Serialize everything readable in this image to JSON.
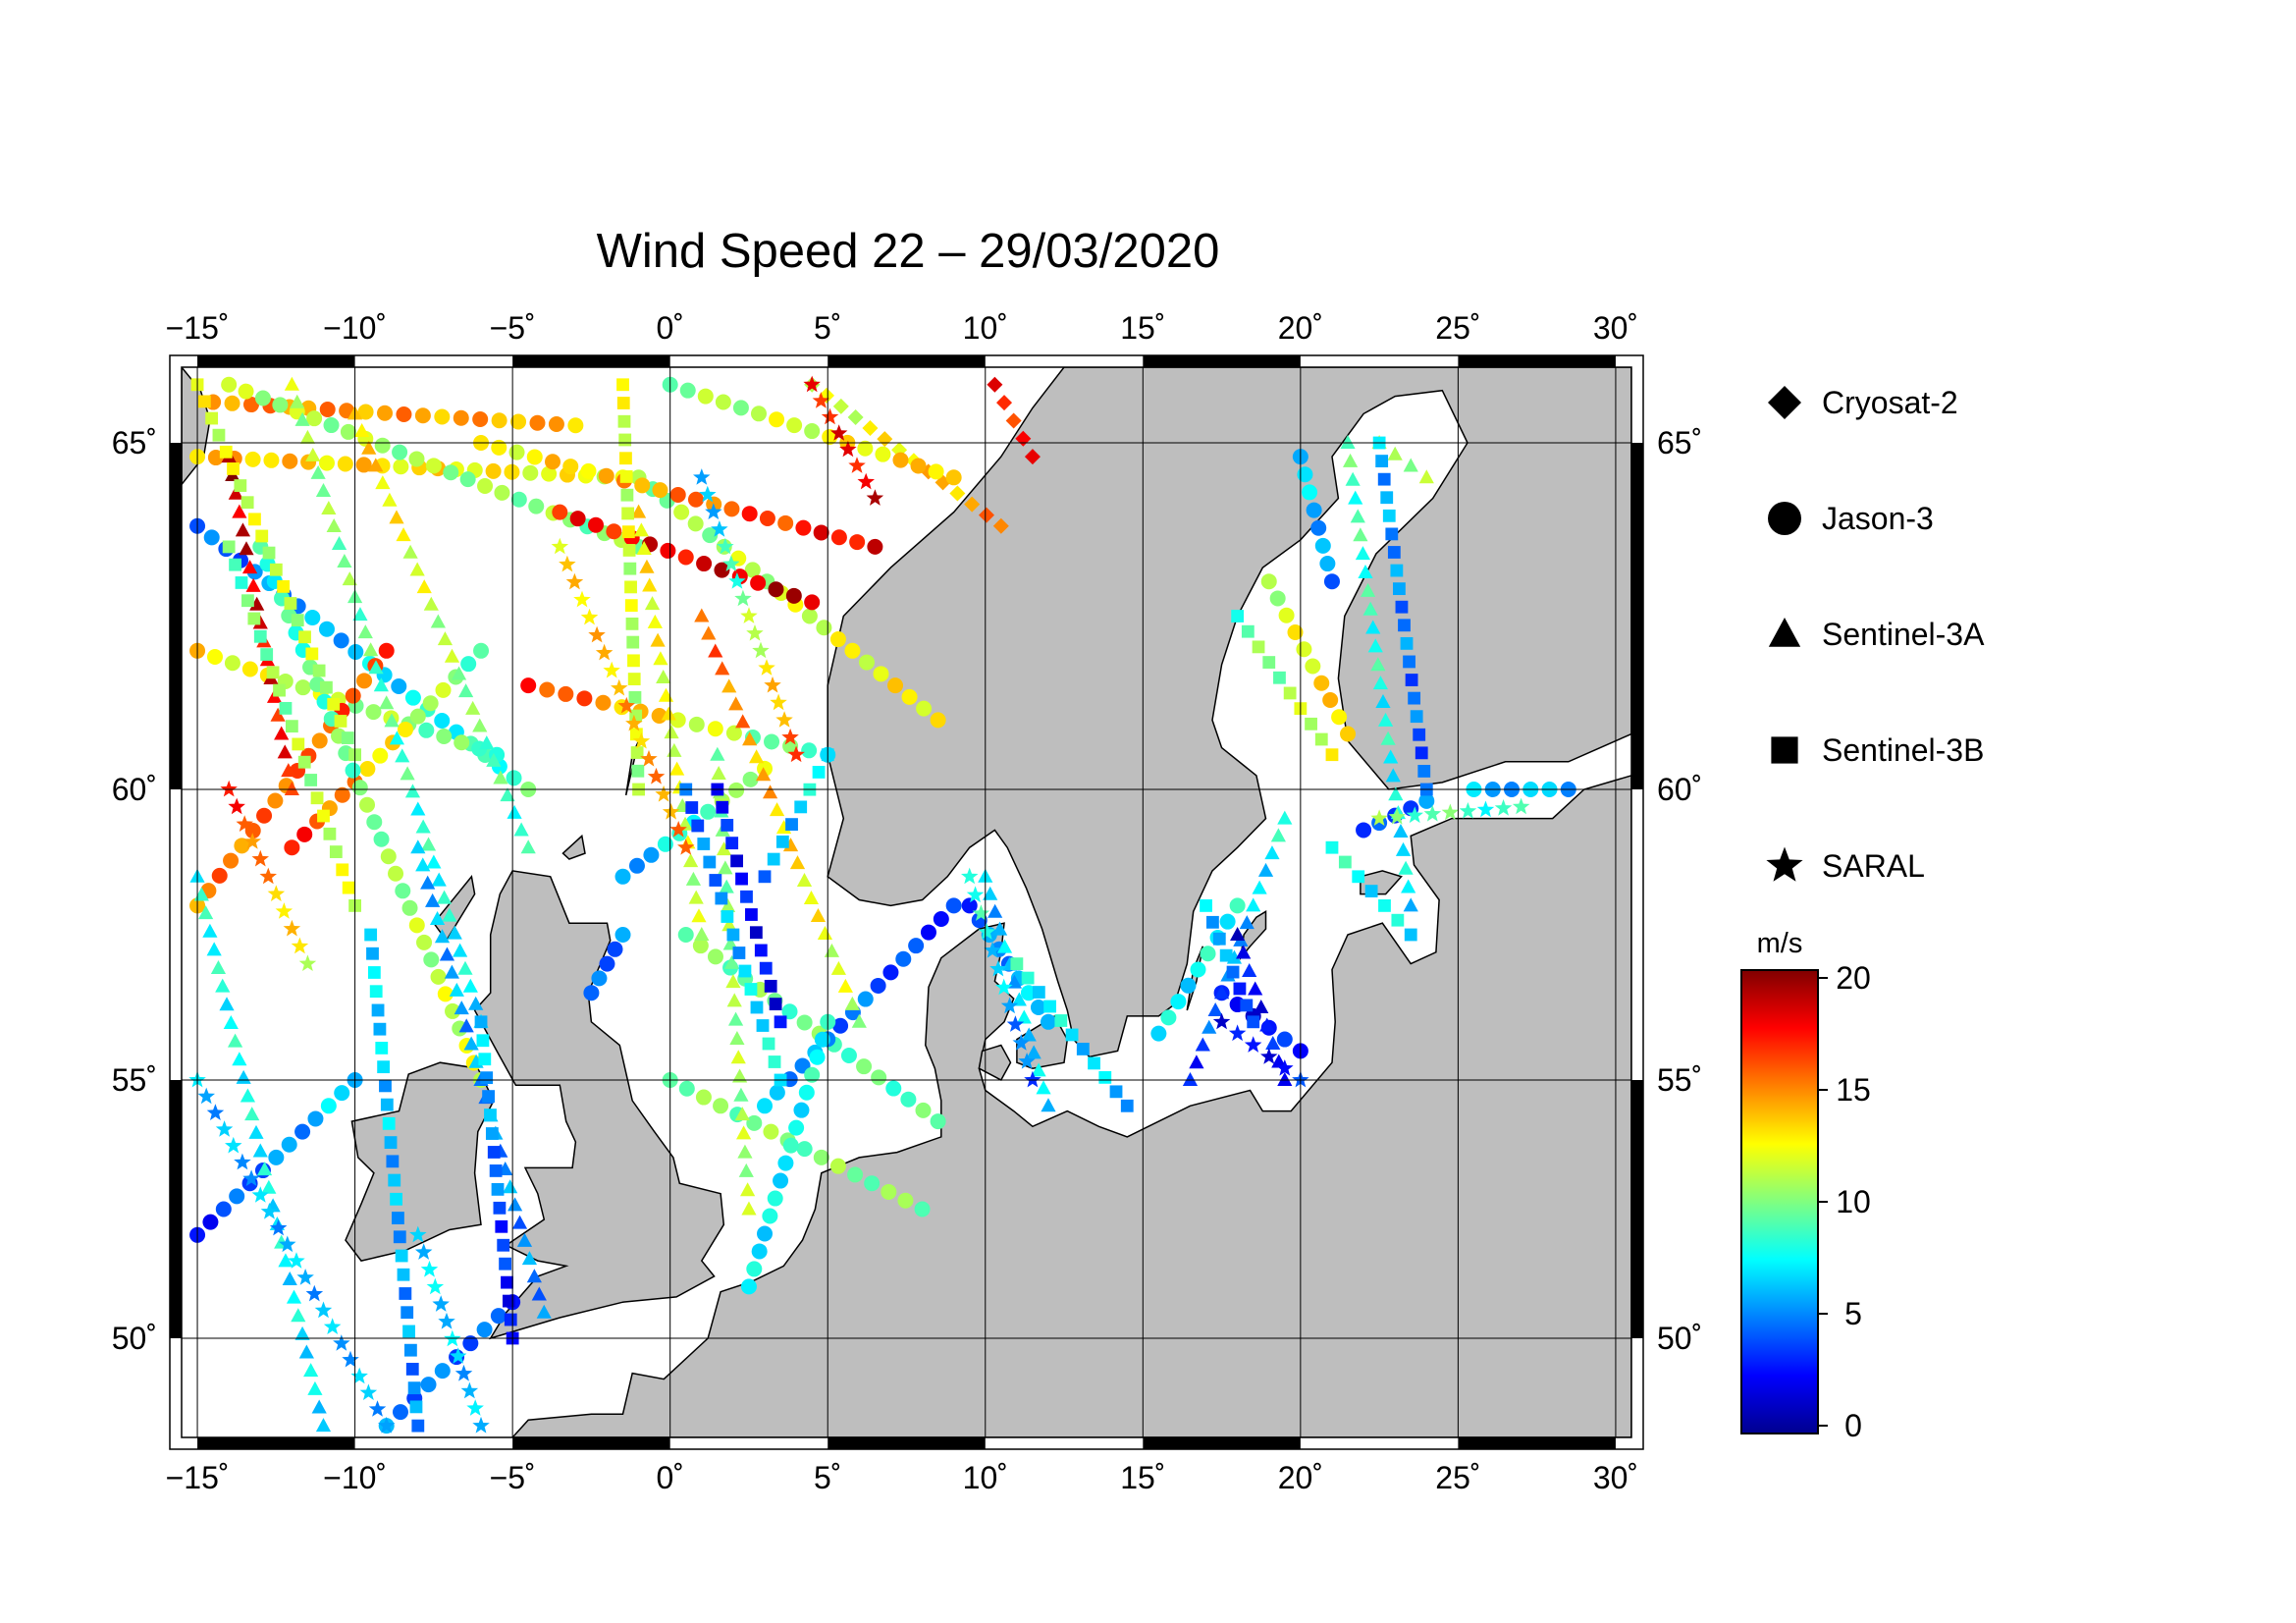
{
  "title": "Wind Speed 22 – 29/03/2020",
  "map": {
    "lon_range": [
      -15.5,
      30.5
    ],
    "lat_range": [
      48.3,
      66.3
    ],
    "lon_ticks": [
      -15,
      -10,
      -5,
      0,
      5,
      10,
      15,
      20,
      25,
      30
    ],
    "lon_labels": [
      "−15˚",
      "−10˚",
      "−5˚",
      "0˚",
      "5˚",
      "10˚",
      "15˚",
      "20˚",
      "25˚",
      "30˚"
    ],
    "lat_ticks": [
      50,
      55,
      60,
      65
    ],
    "lat_labels": [
      "50˚",
      "55˚",
      "60˚",
      "65˚"
    ],
    "ocean_color": "#ffffff",
    "land_color": "#bebebe",
    "coast_color": "#000000"
  },
  "legend": {
    "items": [
      {
        "label": "Cryosat-2",
        "symbol": "diamond"
      },
      {
        "label": "Jason-3",
        "symbol": "circle"
      },
      {
        "label": "Sentinel-3A",
        "symbol": "triangle"
      },
      {
        "label": "Sentinel-3B",
        "symbol": "square"
      },
      {
        "label": "SARAL",
        "symbol": "star"
      }
    ]
  },
  "colorbar": {
    "unit": "m/s",
    "min": 0,
    "max": 20,
    "tick_values": [
      0,
      5,
      10,
      15,
      20
    ],
    "tick_labels": [
      "0",
      "5",
      "10",
      "15",
      "20"
    ],
    "colors": [
      "#00008f",
      "#0000ff",
      "#0080ff",
      "#00ffff",
      "#80ff80",
      "#ffff00",
      "#ff8000",
      "#ff0000",
      "#800000"
    ]
  },
  "chart_data": {
    "type": "scatter",
    "title": "Wind Speed 22 – 29/03/2020",
    "xlabel": "",
    "ylabel": "",
    "color_variable_unit": "m/s",
    "color_range": [
      0,
      20
    ],
    "xlim": [
      -15.5,
      30.5
    ],
    "ylim": [
      48.3,
      66.3
    ],
    "series": [
      {
        "name": "Cryosat-2",
        "symbol": "diamond",
        "tracks": [
          {
            "p0": [
              4.5,
              66.0
            ],
            "p1": [
              10.5,
              63.8
            ],
            "w0": 11,
            "w1": 15
          },
          {
            "p0": [
              10.3,
              66.0
            ],
            "p1": [
              11.5,
              64.8
            ],
            "w0": 17,
            "w1": 17
          }
        ]
      },
      {
        "name": "Jason-3",
        "symbol": "circle",
        "tracks": [
          {
            "p0": [
              -15,
              63.8
            ],
            "p1": [
              -4.5,
              60.0
            ],
            "w0": 4,
            "w1": 9
          },
          {
            "p0": [
              -15,
              62.0
            ],
            "p1": [
              -5.5,
              60.5
            ],
            "w0": 13,
            "w1": 9
          },
          {
            "p0": [
              -14.5,
              65.7
            ],
            "p1": [
              -3.0,
              65.3
            ],
            "w0": 15,
            "w1": 14
          },
          {
            "p0": [
              -15,
              64.8
            ],
            "p1": [
              -1.5,
              64.5
            ],
            "w0": 14,
            "w1": 12
          },
          {
            "p0": [
              -14,
              66.0
            ],
            "p1": [
              -1.0,
              63.5
            ],
            "w0": 11,
            "w1": 10
          },
          {
            "p0": [
              -1.0,
              64.5
            ],
            "p1": [
              8.5,
              61.0
            ],
            "w0": 10,
            "w1": 13
          },
          {
            "p0": [
              0.0,
              66.0
            ],
            "p1": [
              9.0,
              64.5
            ],
            "w0": 10,
            "w1": 14
          },
          {
            "p0": [
              -3.5,
              64.0
            ],
            "p1": [
              4.5,
              62.7
            ],
            "w0": 17,
            "w1": 19
          },
          {
            "p0": [
              -6.0,
              65.0
            ],
            "p1": [
              6.5,
              63.5
            ],
            "w0": 12,
            "w1": 18
          },
          {
            "p0": [
              -4.5,
              61.5
            ],
            "p1": [
              5.0,
              60.5
            ],
            "w0": 17,
            "w1": 8
          },
          {
            "p0": [
              -15,
              58.0
            ],
            "p1": [
              -9.0,
              62.0
            ],
            "w0": 15,
            "w1": 16
          },
          {
            "p0": [
              -12.0,
              59.0
            ],
            "p1": [
              -6.0,
              62.0
            ],
            "w0": 17,
            "w1": 9
          },
          {
            "p0": [
              -13.0,
              63.5
            ],
            "p1": [
              -6.0,
              55.0
            ],
            "w0": 8,
            "w1": 12
          },
          {
            "p0": [
              -15,
              52.0
            ],
            "p1": [
              -10.0,
              55.0
            ],
            "w0": 3,
            "w1": 7
          },
          {
            "p0": [
              -5.0,
              50.7
            ],
            "p1": [
              -9.0,
              48.5
            ],
            "w0": 4,
            "w1": 5
          },
          {
            "p0": [
              -2.5,
              56.5
            ],
            "p1": [
              -1.5,
              57.5
            ],
            "w0": 4,
            "w1": 5
          },
          {
            "p0": [
              -1.5,
              58.5
            ],
            "p1": [
              3.0,
              60.3
            ],
            "w0": 5,
            "w1": 12
          },
          {
            "p0": [
              0.0,
              55.0
            ],
            "p1": [
              8.0,
              52.5
            ],
            "w0": 10,
            "w1": 10
          },
          {
            "p0": [
              0.5,
              57.5
            ],
            "p1": [
              8.5,
              54.2
            ],
            "w0": 10,
            "w1": 9
          },
          {
            "p0": [
              3.0,
              54.5
            ],
            "p1": [
              9.0,
              58.0
            ],
            "w0": 6,
            "w1": 3
          },
          {
            "p0": [
              5.0,
              56.0
            ],
            "p1": [
              2.5,
              51.0
            ],
            "w0": 8,
            "w1": 7
          },
          {
            "p0": [
              9.5,
              58.0
            ],
            "p1": [
              12.0,
              56.0
            ],
            "w0": 4,
            "w1": 7
          },
          {
            "p0": [
              15.5,
              55.8
            ],
            "p1": [
              18.0,
              58.0
            ],
            "w0": 7,
            "w1": 8
          },
          {
            "p0": [
              17.5,
              56.5
            ],
            "p1": [
              20.0,
              55.5
            ],
            "w0": 2,
            "w1": 3
          },
          {
            "p0": [
              19.0,
              63.0
            ],
            "p1": [
              21.5,
              60.8
            ],
            "w0": 11,
            "w1": 14
          },
          {
            "p0": [
              20.0,
              64.8
            ],
            "p1": [
              21.0,
              63.0
            ],
            "w0": 7,
            "w1": 5
          },
          {
            "p0": [
              22.0,
              59.3
            ],
            "p1": [
              24.0,
              59.8
            ],
            "w0": 3,
            "w1": 5
          },
          {
            "p0": [
              25.5,
              60.0
            ],
            "p1": [
              28.5,
              60.0
            ],
            "w0": 6,
            "w1": 6
          }
        ]
      },
      {
        "name": "Sentinel-3A",
        "symbol": "triangle",
        "tracks": [
          {
            "p0": [
              -14.0,
              64.8
            ],
            "p1": [
              -12.0,
              60.0
            ],
            "w0": 19,
            "w1": 17
          },
          {
            "p0": [
              -12.0,
              66.0
            ],
            "p1": [
              -6.0,
              56.0
            ],
            "w0": 11,
            "w1": 7
          },
          {
            "p0": [
              -10.0,
              65.5
            ],
            "p1": [
              -4.5,
              59.0
            ],
            "w0": 14,
            "w1": 8
          },
          {
            "p0": [
              -15,
              58.5
            ],
            "p1": [
              -11.0,
              48.5
            ],
            "w0": 8,
            "w1": 7
          },
          {
            "p0": [
              -8.0,
              59.0
            ],
            "p1": [
              -4.0,
              50.5
            ],
            "w0": 6,
            "w1": 5
          },
          {
            "p0": [
              -1.0,
              64.0
            ],
            "p1": [
              1.0,
              57.5
            ],
            "w0": 13,
            "w1": 11
          },
          {
            "p0": [
              1.0,
              62.5
            ],
            "p1": [
              6.0,
              56.0
            ],
            "w0": 16,
            "w1": 11
          },
          {
            "p0": [
              1.5,
              60.5
            ],
            "p1": [
              2.5,
              52.5
            ],
            "w0": 10,
            "w1": 11
          },
          {
            "p0": [
              10.0,
              58.5
            ],
            "p1": [
              12.0,
              54.5
            ],
            "w0": 6,
            "w1": 7
          },
          {
            "p0": [
              16.5,
              55.0
            ],
            "p1": [
              19.5,
              59.5
            ],
            "w0": 3,
            "w1": 8
          },
          {
            "p0": [
              18.0,
              57.5
            ],
            "p1": [
              19.5,
              55.0
            ],
            "w0": 2,
            "w1": 3
          },
          {
            "p0": [
              21.5,
              65.0
            ],
            "p1": [
              23.5,
              58.0
            ],
            "w0": 9,
            "w1": 7
          },
          {
            "p0": [
              22.5,
              65.0
            ],
            "p1": [
              24.0,
              64.5
            ],
            "w0": 11,
            "w1": 11
          }
        ]
      },
      {
        "name": "Sentinel-3B",
        "symbol": "square",
        "tracks": [
          {
            "p0": [
              -15,
              66.0
            ],
            "p1": [
              -10.0,
              60.5
            ],
            "w0": 12,
            "w1": 11
          },
          {
            "p0": [
              -14.0,
              63.5
            ],
            "p1": [
              -10.0,
              58.0
            ],
            "w0": 9,
            "w1": 12
          },
          {
            "p0": [
              -9.5,
              57.5
            ],
            "p1": [
              -8.0,
              48.5
            ],
            "w0": 7,
            "w1": 5
          },
          {
            "p0": [
              -6.0,
              56.0
            ],
            "p1": [
              -5.0,
              50.0
            ],
            "w0": 7,
            "w1": 2
          },
          {
            "p0": [
              -1.5,
              66.0
            ],
            "p1": [
              -1.0,
              60.0
            ],
            "w0": 12,
            "w1": 11
          },
          {
            "p0": [
              0.5,
              60.0
            ],
            "p1": [
              3.5,
              55.0
            ],
            "w0": 4,
            "w1": 8
          },
          {
            "p0": [
              1.5,
              60.0
            ],
            "p1": [
              3.5,
              56.0
            ],
            "w0": 3,
            "w1": 2
          },
          {
            "p0": [
              3.0,
              58.5
            ],
            "p1": [
              5.0,
              60.5
            ],
            "w0": 5,
            "w1": 8
          },
          {
            "p0": [
              11.0,
              57.0
            ],
            "p1": [
              14.5,
              54.5
            ],
            "w0": 8,
            "w1": 6
          },
          {
            "p0": [
              17.0,
              58.0
            ],
            "p1": [
              18.5,
              56.0
            ],
            "w0": 7,
            "w1": 3
          },
          {
            "p0": [
              18.0,
              62.5
            ],
            "p1": [
              21.0,
              60.5
            ],
            "w0": 9,
            "w1": 12
          },
          {
            "p0": [
              21.0,
              59.0
            ],
            "p1": [
              23.5,
              57.5
            ],
            "w0": 8,
            "w1": 7
          },
          {
            "p0": [
              22.5,
              65.0
            ],
            "p1": [
              24.0,
              60.0
            ],
            "w0": 6,
            "w1": 4
          }
        ]
      },
      {
        "name": "SARAL",
        "symbol": "star",
        "tracks": [
          {
            "p0": [
              -14.0,
              60.0
            ],
            "p1": [
              -11.5,
              57.0
            ],
            "w0": 17,
            "w1": 12
          },
          {
            "p0": [
              -15,
              55.0
            ],
            "p1": [
              -9.0,
              48.5
            ],
            "w0": 6,
            "w1": 6
          },
          {
            "p0": [
              -8.0,
              52.0
            ],
            "p1": [
              -6.0,
              48.5
            ],
            "w0": 7,
            "w1": 6
          },
          {
            "p0": [
              -3.5,
              63.5
            ],
            "p1": [
              0.5,
              59.0
            ],
            "w0": 13,
            "w1": 15
          },
          {
            "p0": [
              1.0,
              64.5
            ],
            "p1": [
              4.0,
              60.5
            ],
            "w0": 5,
            "w1": 16
          },
          {
            "p0": [
              4.5,
              66.0
            ],
            "p1": [
              6.5,
              64.2
            ],
            "w0": 17,
            "w1": 18
          },
          {
            "p0": [
              9.5,
              58.5
            ],
            "p1": [
              11.5,
              55.0
            ],
            "w0": 9,
            "w1": 4
          },
          {
            "p0": [
              17.5,
              56.0
            ],
            "p1": [
              20.0,
              55.0
            ],
            "w0": 2,
            "w1": 3
          },
          {
            "p0": [
              22.5,
              59.5
            ],
            "p1": [
              27.0,
              59.7
            ],
            "w0": 10,
            "w1": 8
          }
        ]
      }
    ]
  }
}
